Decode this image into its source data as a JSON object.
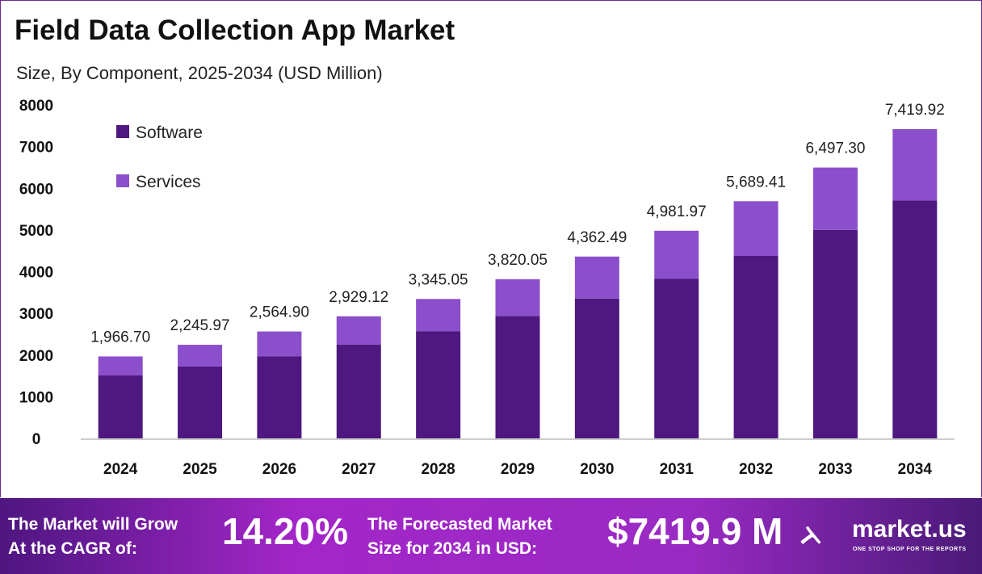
{
  "title": "Field Data Collection App Market",
  "subtitle": "Size, By Component, 2025-2034 (USD Million)",
  "colors": {
    "software": "#4e1880",
    "services": "#8c4fcc"
  },
  "chart_data": {
    "type": "bar",
    "stacked": true,
    "categories": [
      "2024",
      "2025",
      "2026",
      "2027",
      "2028",
      "2029",
      "2030",
      "2031",
      "2032",
      "2033",
      "2034"
    ],
    "series": [
      {
        "name": "Software",
        "values": [
          1510,
          1727,
          1972,
          2253,
          2573,
          2939,
          3356,
          3833,
          4378,
          5000,
          5710
        ]
      },
      {
        "name": "Services",
        "values": [
          456.7,
          518.97,
          592.9,
          676.12,
          772.05,
          881.05,
          1006.49,
          1148.97,
          1311.41,
          1497.3,
          1709.92
        ]
      }
    ],
    "totals": [
      "1,966.70",
      "2,245.97",
      "2,564.90",
      "2,929.12",
      "3,345.05",
      "3,820.05",
      "4,362.49",
      "4,981.97",
      "5,689.41",
      "6,497.30",
      "7,419.92"
    ],
    "yticks": [
      0,
      1000,
      2000,
      3000,
      4000,
      5000,
      6000,
      7000,
      8000
    ],
    "ylim": [
      0,
      8000
    ],
    "grid": false,
    "legend": "top-left"
  },
  "banner": {
    "cagr_label_1": "The Market will Grow",
    "cagr_label_2": "At the CAGR of:",
    "cagr": "14.20%",
    "forecast_label_1": "The Forecasted Market",
    "forecast_label_2": "Size for 2034 in USD:",
    "forecast": "$7419.9 M",
    "brand": "market.us",
    "tagline": "ONE STOP SHOP FOR THE REPORTS"
  }
}
